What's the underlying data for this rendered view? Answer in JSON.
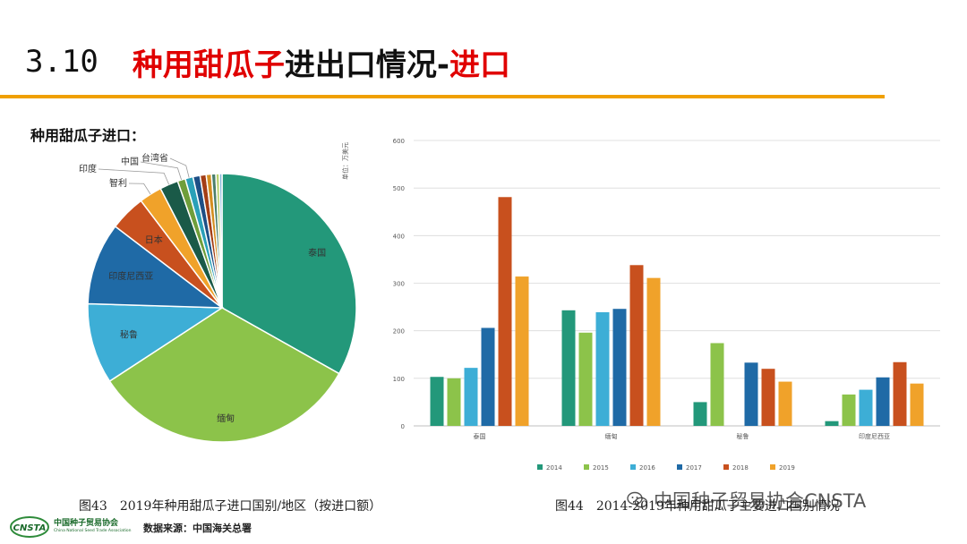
{
  "slide": {
    "number": "3.10",
    "title_red_1": "种用甜瓜子",
    "title_black": "进出口情况-",
    "title_red_2": "进口"
  },
  "pie_section": {
    "heading": "种用甜瓜子进口：",
    "caption": "图43　2019年种用甜瓜子进口国别/地区（按进口额）"
  },
  "bar_section": {
    "caption": "图44　2014-2019年种用甜瓜子主要进口国别情况",
    "unit_label": "单位：万美元"
  },
  "footer": {
    "logo_mark": "CNSTA",
    "logo_cn": "中国种子贸易协会",
    "logo_en": "China National Seed Trade Association",
    "source": "数据来源：中国海关总署"
  },
  "watermark": "中国种子贸易协会CNSTA",
  "chart_data": [
    {
      "type": "pie",
      "title": "",
      "slices": [
        {
          "label": "泰国",
          "value": 31.5,
          "color": "#23987a"
        },
        {
          "label": "缅甸",
          "value": 31.0,
          "color": "#8cc34a"
        },
        {
          "label": "秘鲁",
          "value": 9.2,
          "color": "#3daed6"
        },
        {
          "label": "印度尼西亚",
          "value": 9.4,
          "color": "#1f6aa6"
        },
        {
          "label": "日本",
          "value": 4.1,
          "color": "#c8501e"
        },
        {
          "label": "智利",
          "value": 2.6,
          "color": "#f0a22a"
        },
        {
          "label": "印度",
          "value": 2.1,
          "color": "#1a5a48"
        },
        {
          "label": "中国",
          "value": 0.9,
          "color": "#6f9e3a"
        },
        {
          "label": "台湾省",
          "value": 0.9,
          "color": "#2aa0b8"
        },
        {
          "label": "",
          "value": 0.8,
          "color": "#1d4f86"
        },
        {
          "label": "",
          "value": 0.7,
          "color": "#a33e16"
        },
        {
          "label": "",
          "value": 0.6,
          "color": "#d48e20"
        },
        {
          "label": "",
          "value": 0.5,
          "color": "#4b7f6a"
        },
        {
          "label": "",
          "value": 0.4,
          "color": "#b5cf6b"
        },
        {
          "label": "",
          "value": 0.3,
          "color": "#7fb3d5"
        }
      ],
      "outside_labels": [
        "印度",
        "中国",
        "台湾省",
        "智利"
      ],
      "inside_labels": [
        "泰国",
        "缅甸",
        "秘鲁",
        "印度尼西亚",
        "日本"
      ]
    },
    {
      "type": "bar",
      "title": "",
      "ylabel": "单位：万美元",
      "ylim": [
        0,
        600
      ],
      "yticks": [
        0,
        100,
        200,
        300,
        400,
        500,
        600
      ],
      "grid": true,
      "legend_position": "bottom",
      "categories": [
        "泰国",
        "缅甸",
        "秘鲁",
        "印度尼西亚"
      ],
      "series": [
        {
          "name": "2014",
          "color": "#23987a",
          "values": [
            103,
            243,
            50,
            10
          ]
        },
        {
          "name": "2015",
          "color": "#8cc34a",
          "values": [
            100,
            196,
            174,
            66
          ]
        },
        {
          "name": "2016",
          "color": "#3daed6",
          "values": [
            122,
            239,
            0,
            76
          ]
        },
        {
          "name": "2017",
          "color": "#1f6aa6",
          "values": [
            206,
            246,
            133,
            102
          ]
        },
        {
          "name": "2018",
          "color": "#c8501e",
          "values": [
            481,
            338,
            120,
            134
          ]
        },
        {
          "name": "2019",
          "color": "#f0a22a",
          "values": [
            314,
            311,
            93,
            89
          ]
        }
      ]
    }
  ]
}
